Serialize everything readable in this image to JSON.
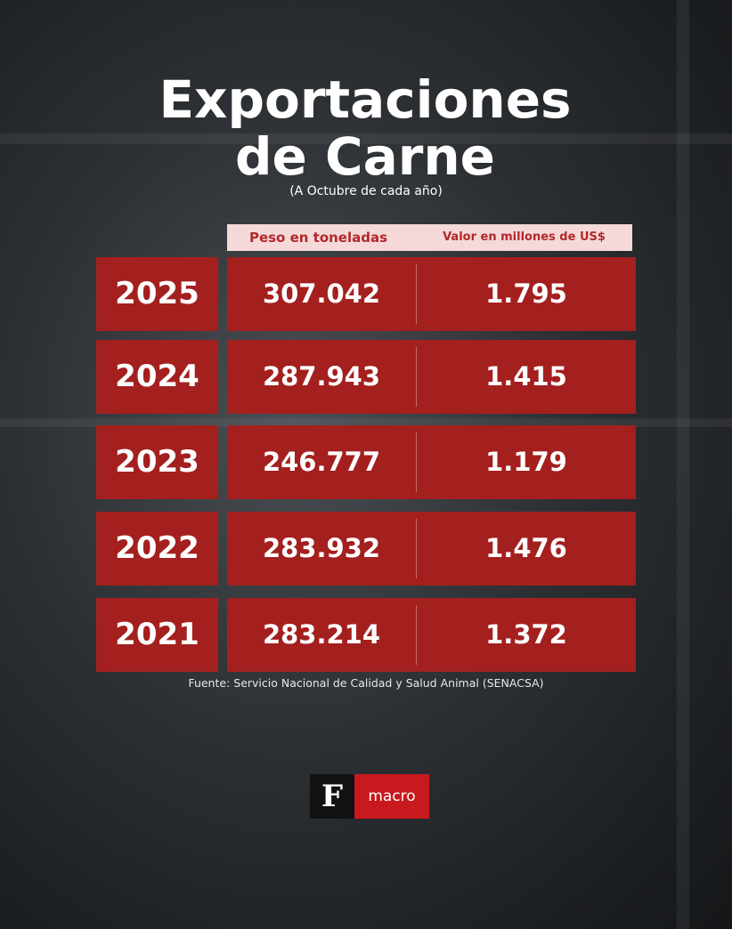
{
  "header": {
    "title": "Exportaciones de Carne",
    "subtitle": "(A Octubre de cada año)"
  },
  "table": {
    "columns": [
      "Peso en toneladas",
      "Valor en millones de US$"
    ],
    "rows": [
      [
        "2025",
        "307.042",
        "1.795"
      ],
      [
        "2024",
        "287.943",
        "1.415"
      ],
      [
        "2023",
        "246.777",
        "1.179"
      ],
      [
        "2022",
        "283.932",
        "1.476"
      ],
      [
        "2021",
        "283.214",
        "1.372"
      ]
    ]
  },
  "footer": {
    "source": "Fuente: Servicio Nacional de Calidad y Salud Animal (SENACSA)",
    "logo": {
      "mark": "F",
      "label": "macro"
    }
  }
}
